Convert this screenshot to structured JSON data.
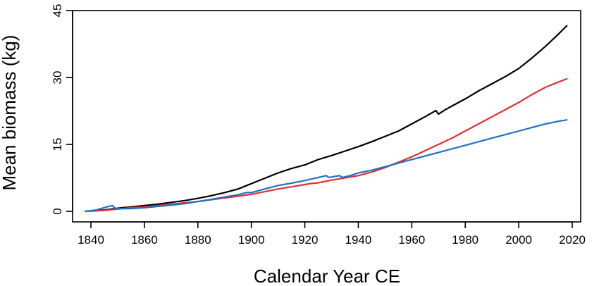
{
  "chart_data": {
    "type": "line",
    "title": "",
    "xlabel": "Calendar Year CE",
    "ylabel": "Mean biomass (kg)",
    "xlim": [
      1838,
      2018
    ],
    "ylim": [
      0,
      45
    ],
    "xticks": [
      1840,
      1860,
      1880,
      1900,
      1920,
      1940,
      1960,
      1980,
      2000,
      2020
    ],
    "yticks": [
      0,
      15,
      30,
      45
    ],
    "grid": false,
    "legend": "none",
    "series": [
      {
        "color": "#000000",
        "x": [
          1838,
          1845,
          1850,
          1855,
          1860,
          1865,
          1870,
          1875,
          1880,
          1885,
          1890,
          1895,
          1900,
          1905,
          1910,
          1915,
          1920,
          1925,
          1930,
          1935,
          1940,
          1945,
          1950,
          1955,
          1960,
          1965,
          1969,
          1970,
          1972,
          1975,
          1980,
          1985,
          1990,
          1995,
          2000,
          2005,
          2010,
          2015,
          2018
        ],
        "y": [
          0.0,
          0.3,
          0.7,
          1.0,
          1.3,
          1.6,
          2.0,
          2.4,
          2.9,
          3.5,
          4.2,
          5.0,
          6.2,
          7.4,
          8.6,
          9.6,
          10.4,
          11.6,
          12.5,
          13.5,
          14.5,
          15.6,
          16.8,
          18.0,
          19.6,
          21.2,
          22.6,
          21.8,
          22.6,
          23.6,
          25.2,
          27.0,
          28.6,
          30.2,
          32.0,
          34.4,
          37.0,
          39.8,
          41.6
        ]
      },
      {
        "color": "#e03030",
        "x": [
          1838,
          1845,
          1850,
          1855,
          1860,
          1865,
          1870,
          1875,
          1880,
          1885,
          1890,
          1895,
          1900,
          1905,
          1910,
          1915,
          1920,
          1922,
          1925,
          1930,
          1935,
          1940,
          1945,
          1950,
          1955,
          1960,
          1965,
          1970,
          1975,
          1980,
          1985,
          1990,
          1995,
          2000,
          2005,
          2010,
          2015,
          2018
        ],
        "y": [
          0.0,
          0.2,
          0.5,
          0.8,
          1.0,
          1.3,
          1.6,
          1.9,
          2.2,
          2.6,
          3.0,
          3.4,
          3.8,
          4.4,
          5.0,
          5.5,
          6.0,
          6.2,
          6.4,
          7.0,
          7.5,
          8.0,
          8.8,
          9.8,
          11.0,
          12.2,
          13.6,
          15.0,
          16.4,
          18.0,
          19.6,
          21.2,
          22.8,
          24.4,
          26.2,
          27.8,
          29.0,
          29.7
        ]
      },
      {
        "color": "#2070c8",
        "x": [
          1838,
          1842,
          1846,
          1848,
          1849,
          1851,
          1855,
          1860,
          1865,
          1870,
          1875,
          1880,
          1885,
          1890,
          1895,
          1898,
          1900,
          1905,
          1910,
          1915,
          1920,
          1925,
          1928,
          1929,
          1931,
          1933,
          1934,
          1937,
          1940,
          1945,
          1950,
          1955,
          1960,
          1965,
          1970,
          1975,
          1980,
          1985,
          1990,
          1995,
          2000,
          2005,
          2010,
          2015,
          2018
        ],
        "y": [
          0.0,
          0.3,
          1.0,
          1.3,
          0.7,
          0.6,
          0.6,
          0.8,
          1.1,
          1.4,
          1.7,
          2.2,
          2.7,
          3.2,
          3.7,
          4.2,
          4.2,
          5.0,
          5.8,
          6.3,
          6.9,
          7.6,
          8.0,
          7.6,
          7.8,
          8.0,
          7.6,
          8.0,
          8.6,
          9.2,
          10.0,
          10.8,
          11.6,
          12.4,
          13.2,
          14.0,
          14.8,
          15.6,
          16.4,
          17.2,
          18.0,
          18.8,
          19.6,
          20.2,
          20.5
        ]
      }
    ]
  }
}
